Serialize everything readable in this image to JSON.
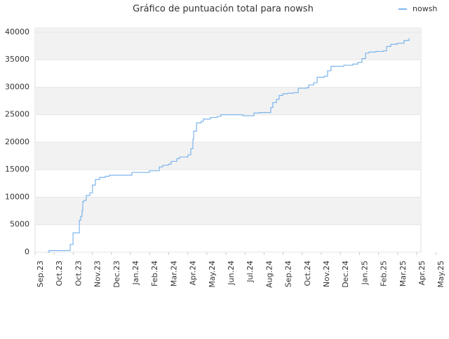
{
  "chart_data": {
    "type": "line",
    "title": "Gráfico de puntuación total para nowsh",
    "step": "post",
    "grid_bands": true,
    "legend": "top-right",
    "xlim": [
      0,
      20
    ],
    "xticks": [
      {
        "value": 0,
        "label": "Sep.23"
      },
      {
        "value": 1,
        "label": "Oct.23"
      },
      {
        "value": 2,
        "label": "Oct.23"
      },
      {
        "value": 3,
        "label": "Nov.23"
      },
      {
        "value": 4,
        "label": "Dec.23"
      },
      {
        "value": 5,
        "label": "Jan.24"
      },
      {
        "value": 6,
        "label": "Feb.24"
      },
      {
        "value": 7,
        "label": "Mar.24"
      },
      {
        "value": 8,
        "label": "Apr.24"
      },
      {
        "value": 9,
        "label": "May.24"
      },
      {
        "value": 10,
        "label": "Jun.24"
      },
      {
        "value": 11,
        "label": "Jul.24"
      },
      {
        "value": 12,
        "label": "Aug.24"
      },
      {
        "value": 13,
        "label": "Sep.24"
      },
      {
        "value": 14,
        "label": "Oct.24"
      },
      {
        "value": 15,
        "label": "Nov.24"
      },
      {
        "value": 16,
        "label": "Dec.24"
      },
      {
        "value": 17,
        "label": "Jan.25"
      },
      {
        "value": 18,
        "label": "Feb.25"
      },
      {
        "value": 19,
        "label": "Mar.25"
      },
      {
        "value": 20,
        "label": "Apr.25"
      },
      {
        "value": 21,
        "label": "May.25"
      }
    ],
    "ylim": [
      0,
      40760
    ],
    "yticks": [
      0,
      5000,
      10000,
      15000,
      20000,
      25000,
      30000,
      35000,
      40000
    ],
    "x": [
      0.66,
      0.74,
      1.84,
      1.99,
      2.32,
      2.39,
      2.46,
      2.5,
      2.57,
      2.68,
      2.87,
      3.01,
      3.16,
      3.38,
      3.68,
      3.9,
      5.07,
      5.99,
      6.51,
      6.69,
      6.99,
      7.13,
      7.43,
      7.57,
      8.01,
      8.16,
      8.27,
      8.31,
      8.46,
      8.71,
      8.82,
      9.19,
      9.56,
      9.74,
      10.88,
      11.47,
      11.76,
      12.35,
      12.46,
      12.65,
      12.79,
      12.98,
      13.24,
      13.53,
      13.79,
      14.23,
      14.34,
      14.6,
      14.78,
      15.15,
      15.33,
      15.51,
      16.18,
      16.65,
      16.91,
      17.13,
      17.32,
      17.5,
      17.87,
      18.24,
      18.42,
      18.64,
      18.97,
      19.34,
      19.6
    ],
    "series": [
      {
        "name": "nowsh",
        "color": "#7cb5ec",
        "values": [
          0,
          300,
          1400,
          3500,
          5800,
          6500,
          7500,
          9200,
          9400,
          10300,
          10800,
          12200,
          13200,
          13600,
          13800,
          14000,
          14500,
          14800,
          15500,
          15800,
          16000,
          16500,
          17000,
          17300,
          17700,
          18800,
          20500,
          22000,
          23500,
          23800,
          24200,
          24500,
          24700,
          25000,
          24800,
          25300,
          25400,
          26300,
          27200,
          27800,
          28500,
          28800,
          28900,
          29000,
          29800,
          29900,
          30400,
          30800,
          31800,
          32000,
          33000,
          33800,
          34000,
          34200,
          34500,
          35200,
          36200,
          36400,
          36500,
          36600,
          37400,
          37800,
          38000,
          38500,
          38900
        ]
      }
    ]
  }
}
